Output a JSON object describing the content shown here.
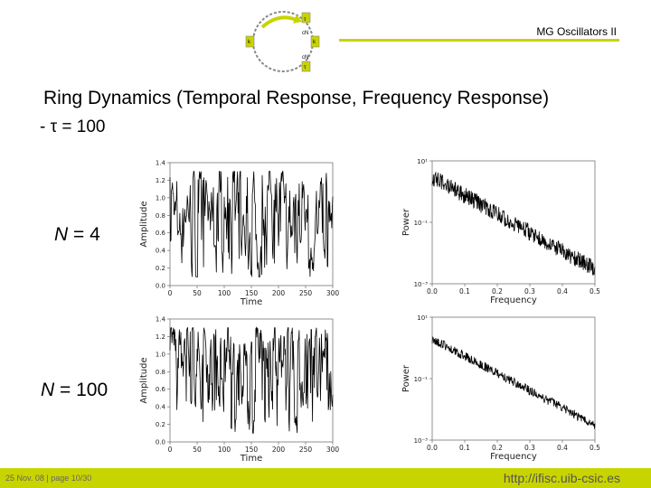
{
  "header": {
    "title": "MG Oscillators II"
  },
  "logo": {
    "labels": [
      "τ",
      "cN",
      "k",
      "cN",
      "τ",
      "k"
    ]
  },
  "slide": {
    "title": "Ring Dynamics (Temporal Response, Frequency Response)",
    "subtitle": "- τ = 100"
  },
  "rows": [
    {
      "n_symbol": "N",
      "n_eq": "= 4"
    },
    {
      "n_symbol": "N",
      "n_eq": "= 100"
    }
  ],
  "footer": {
    "left": "25 Nov. 08 | page 10/30",
    "right": "http://ifisc.uib-csic.es"
  },
  "colors": {
    "accent": "#c8d400",
    "line": "#000000"
  },
  "chart_data": [
    {
      "type": "line",
      "xlabel": "Time",
      "ylabel": "Amplitude",
      "xlim": [
        0,
        300
      ],
      "ylim": [
        0,
        1.4
      ],
      "xticks": [
        "0",
        "50",
        "100",
        "150",
        "200",
        "250",
        "300"
      ],
      "yticks": [
        "0.0",
        "0.2",
        "0.4",
        "0.6",
        "0.8",
        "1.0",
        "1.2",
        "1.4"
      ],
      "series": [
        {
          "seed": 7,
          "values_range": [
            0.1,
            1.3
          ]
        }
      ]
    },
    {
      "type": "line",
      "xlabel": "Frequency",
      "ylabel": "Power",
      "xlim": [
        0,
        0.5
      ],
      "yscale": "log",
      "ylim": [
        0.001,
        10
      ],
      "xticks": [
        "0.0",
        "0.1",
        "0.2",
        "0.3",
        "0.4",
        "0.5"
      ],
      "yticks": [
        "10¹",
        "10⁻¹",
        "10⁻³"
      ],
      "series": [
        {
          "start_power": 3,
          "end_power": 0.003
        }
      ]
    },
    {
      "type": "line",
      "xlabel": "Time",
      "ylabel": "Amplitude",
      "xlim": [
        0,
        300
      ],
      "ylim": [
        0,
        1.4
      ],
      "xticks": [
        "0",
        "50",
        "100",
        "150",
        "200",
        "250",
        "300"
      ],
      "yticks": [
        "0.0",
        "0.2",
        "0.4",
        "0.6",
        "0.8",
        "1.0",
        "1.2",
        "1.4"
      ],
      "series": [
        {
          "seed": 13,
          "values_range": [
            0.1,
            1.3
          ]
        }
      ]
    },
    {
      "type": "line",
      "xlabel": "Frequency",
      "ylabel": "Power",
      "xlim": [
        0,
        0.5
      ],
      "yscale": "log",
      "ylim": [
        0.001,
        10
      ],
      "xticks": [
        "0.0",
        "0.1",
        "0.2",
        "0.3",
        "0.4",
        "0.5"
      ],
      "yticks": [
        "10¹",
        "10⁻¹",
        "10⁻³"
      ],
      "series": [
        {
          "start_power": 2,
          "end_power": 0.003
        }
      ]
    }
  ]
}
